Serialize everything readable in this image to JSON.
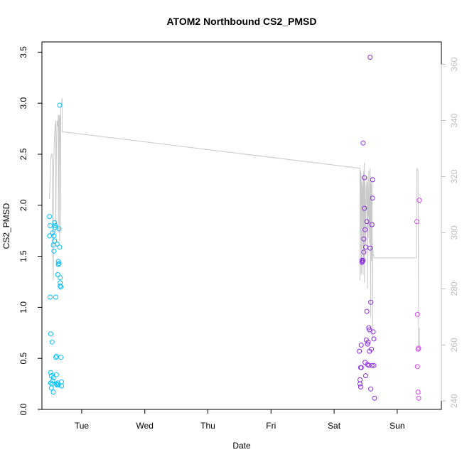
{
  "chart_data": {
    "type": "scatter",
    "title": "ATOM2 Northbound CS2_PMSD",
    "xlabel": "Date",
    "ylabel": "CS2_PMSD",
    "x_ticks": [
      "Tue",
      "Wed",
      "Thu",
      "Fri",
      "Sat",
      "Sun"
    ],
    "xlim": [
      -0.63,
      5.7
    ],
    "ylim": [
      0,
      3.6
    ],
    "y_ticks": [
      "0.0",
      "0.5",
      "1.0",
      "1.5",
      "2.0",
      "2.5",
      "3.0",
      "3.5"
    ],
    "y2lim": [
      237,
      368
    ],
    "y2_ticks": [
      "240",
      "260",
      "280",
      "300",
      "320",
      "340",
      "360"
    ],
    "colors": {
      "group1": "#00bfff",
      "group2": "#8a2be2",
      "group3": "#e040fb",
      "line": "#c8c8c8",
      "right_axis": "#bdbdbd",
      "frame": "#000000"
    },
    "series": [
      {
        "color": "#00bfff",
        "points": [
          [
            -0.51,
            1.89
          ],
          [
            -0.51,
            1.7
          ],
          [
            -0.5,
            1.8
          ],
          [
            -0.5,
            1.1
          ],
          [
            -0.49,
            0.74
          ],
          [
            -0.49,
            0.26
          ],
          [
            -0.49,
            0.36
          ],
          [
            -0.48,
            0.33
          ],
          [
            -0.48,
            0.21
          ],
          [
            -0.47,
            0.66
          ],
          [
            -0.47,
            0.25
          ],
          [
            -0.46,
            1.73
          ],
          [
            -0.46,
            0.28
          ],
          [
            -0.45,
            0.31
          ],
          [
            -0.45,
            0.17
          ],
          [
            -0.45,
            1.61
          ],
          [
            -0.44,
            1.55
          ],
          [
            -0.44,
            1.7
          ],
          [
            -0.43,
            1.83
          ],
          [
            -0.43,
            1.65
          ],
          [
            -0.42,
            1.8
          ],
          [
            -0.42,
            1.78
          ],
          [
            -0.41,
            1.1
          ],
          [
            -0.41,
            0.51
          ],
          [
            -0.4,
            0.52
          ],
          [
            -0.4,
            0.34
          ],
          [
            -0.4,
            0.25
          ],
          [
            -0.39,
            0.24
          ],
          [
            -0.39,
            1.62
          ],
          [
            -0.38,
            0.26
          ],
          [
            -0.38,
            1.32
          ],
          [
            -0.37,
            0.24
          ],
          [
            -0.37,
            1.45
          ],
          [
            -0.37,
            1.42
          ],
          [
            -0.36,
            1.77
          ],
          [
            -0.36,
            1.43
          ],
          [
            -0.35,
            1.59
          ],
          [
            -0.35,
            2.98
          ],
          [
            -0.34,
            1.21
          ],
          [
            -0.34,
            1.24
          ],
          [
            -0.34,
            1.29
          ],
          [
            -0.33,
            1.2
          ],
          [
            -0.33,
            0.51
          ],
          [
            -0.32,
            0.27
          ],
          [
            -0.32,
            0.23
          ]
        ]
      },
      {
        "color": "#8a2be2",
        "points": [
          [
            4.4,
            0.57
          ],
          [
            4.41,
            0.29
          ],
          [
            4.41,
            0.25
          ],
          [
            4.42,
            0.41
          ],
          [
            4.42,
            0.22
          ],
          [
            4.43,
            0.41
          ],
          [
            4.43,
            0.63
          ],
          [
            4.44,
            1.44
          ],
          [
            4.44,
            1.46
          ],
          [
            4.45,
            1.45
          ],
          [
            4.46,
            2.61
          ],
          [
            4.46,
            1.46
          ],
          [
            4.47,
            1.67
          ],
          [
            4.47,
            1.54
          ],
          [
            4.48,
            1.97
          ],
          [
            4.48,
            2.27
          ],
          [
            4.49,
            1.76
          ],
          [
            4.49,
            0.46
          ],
          [
            4.5,
            1.59
          ],
          [
            4.5,
            0.33
          ],
          [
            4.51,
            0.68
          ],
          [
            4.52,
            1.84
          ],
          [
            4.52,
            0.96
          ],
          [
            4.53,
            0.44
          ],
          [
            4.53,
            0.64
          ],
          [
            4.54,
            0.66
          ],
          [
            4.55,
            0.43
          ],
          [
            4.55,
            0.8
          ],
          [
            4.56,
            0.78
          ],
          [
            4.56,
            0.57
          ],
          [
            4.57,
            3.45
          ],
          [
            4.57,
            1.58
          ],
          [
            4.58,
            1.05
          ],
          [
            4.58,
            0.2
          ],
          [
            4.59,
            0.59
          ],
          [
            4.6,
            0.43
          ],
          [
            4.6,
            1.81
          ],
          [
            4.61,
            2.25
          ],
          [
            4.61,
            2.07
          ],
          [
            4.62,
            0.76
          ],
          [
            4.63,
            0.69
          ],
          [
            4.63,
            0.43
          ],
          [
            4.64,
            0.11
          ]
        ]
      },
      {
        "color": "#e040fb",
        "points": [
          [
            5.31,
            1.84
          ],
          [
            5.32,
            0.93
          ],
          [
            5.32,
            0.42
          ],
          [
            5.33,
            0.17
          ],
          [
            5.33,
            0.59
          ],
          [
            5.34,
            0.11
          ],
          [
            5.34,
            0.6
          ],
          [
            5.35,
            2.05
          ]
        ]
      }
    ],
    "line": {
      "color": "#c8c8c8",
      "axis": "right",
      "points": [
        [
          -0.51,
          312
        ],
        [
          -0.49,
          326
        ],
        [
          -0.48,
          328
        ],
        [
          -0.47,
          328
        ],
        [
          -0.46,
          322
        ],
        [
          -0.46,
          296
        ],
        [
          -0.45,
          283
        ],
        [
          -0.45,
          318
        ],
        [
          -0.44,
          328
        ],
        [
          -0.43,
          335
        ],
        [
          -0.42,
          338
        ],
        [
          -0.41,
          340
        ],
        [
          -0.41,
          300
        ],
        [
          -0.4,
          330
        ],
        [
          -0.39,
          340
        ],
        [
          -0.38,
          338
        ],
        [
          -0.37,
          342
        ],
        [
          -0.37,
          300
        ],
        [
          -0.36,
          342
        ],
        [
          -0.35,
          340
        ],
        [
          -0.35,
          297
        ],
        [
          -0.34,
          342
        ],
        [
          -0.34,
          300
        ],
        [
          -0.33,
          345
        ],
        [
          -0.32,
          346
        ],
        [
          -0.31,
          348
        ],
        [
          -0.31,
          336
        ],
        [
          4.4,
          323
        ],
        [
          4.41,
          323
        ],
        [
          4.41,
          283
        ],
        [
          4.42,
          322
        ],
        [
          4.43,
          320
        ],
        [
          4.43,
          285
        ],
        [
          4.44,
          300
        ],
        [
          4.44,
          318
        ],
        [
          4.45,
          315
        ],
        [
          4.46,
          285
        ],
        [
          4.46,
          320
        ],
        [
          4.47,
          322
        ],
        [
          4.47,
          290
        ],
        [
          4.48,
          325
        ],
        [
          4.48,
          282
        ],
        [
          4.49,
          318
        ],
        [
          4.5,
          300
        ],
        [
          4.5,
          296
        ],
        [
          4.51,
          316
        ],
        [
          4.52,
          318
        ],
        [
          4.53,
          280
        ],
        [
          4.53,
          320
        ],
        [
          4.54,
          298
        ],
        [
          4.55,
          322
        ],
        [
          4.56,
          296
        ],
        [
          4.56,
          300
        ],
        [
          4.57,
          323
        ],
        [
          4.58,
          270
        ],
        [
          4.58,
          318
        ],
        [
          4.59,
          316
        ],
        [
          4.59,
          290
        ],
        [
          4.6,
          320
        ],
        [
          4.61,
          262
        ],
        [
          4.61,
          296
        ],
        [
          4.62,
          292
        ],
        [
          4.63,
          292
        ],
        [
          4.63,
          291
        ],
        [
          5.3,
          291
        ],
        [
          5.31,
          323
        ],
        [
          5.33,
          322
        ],
        [
          5.34,
          260
        ],
        [
          5.35,
          258
        ],
        [
          5.35,
          266
        ]
      ]
    }
  }
}
